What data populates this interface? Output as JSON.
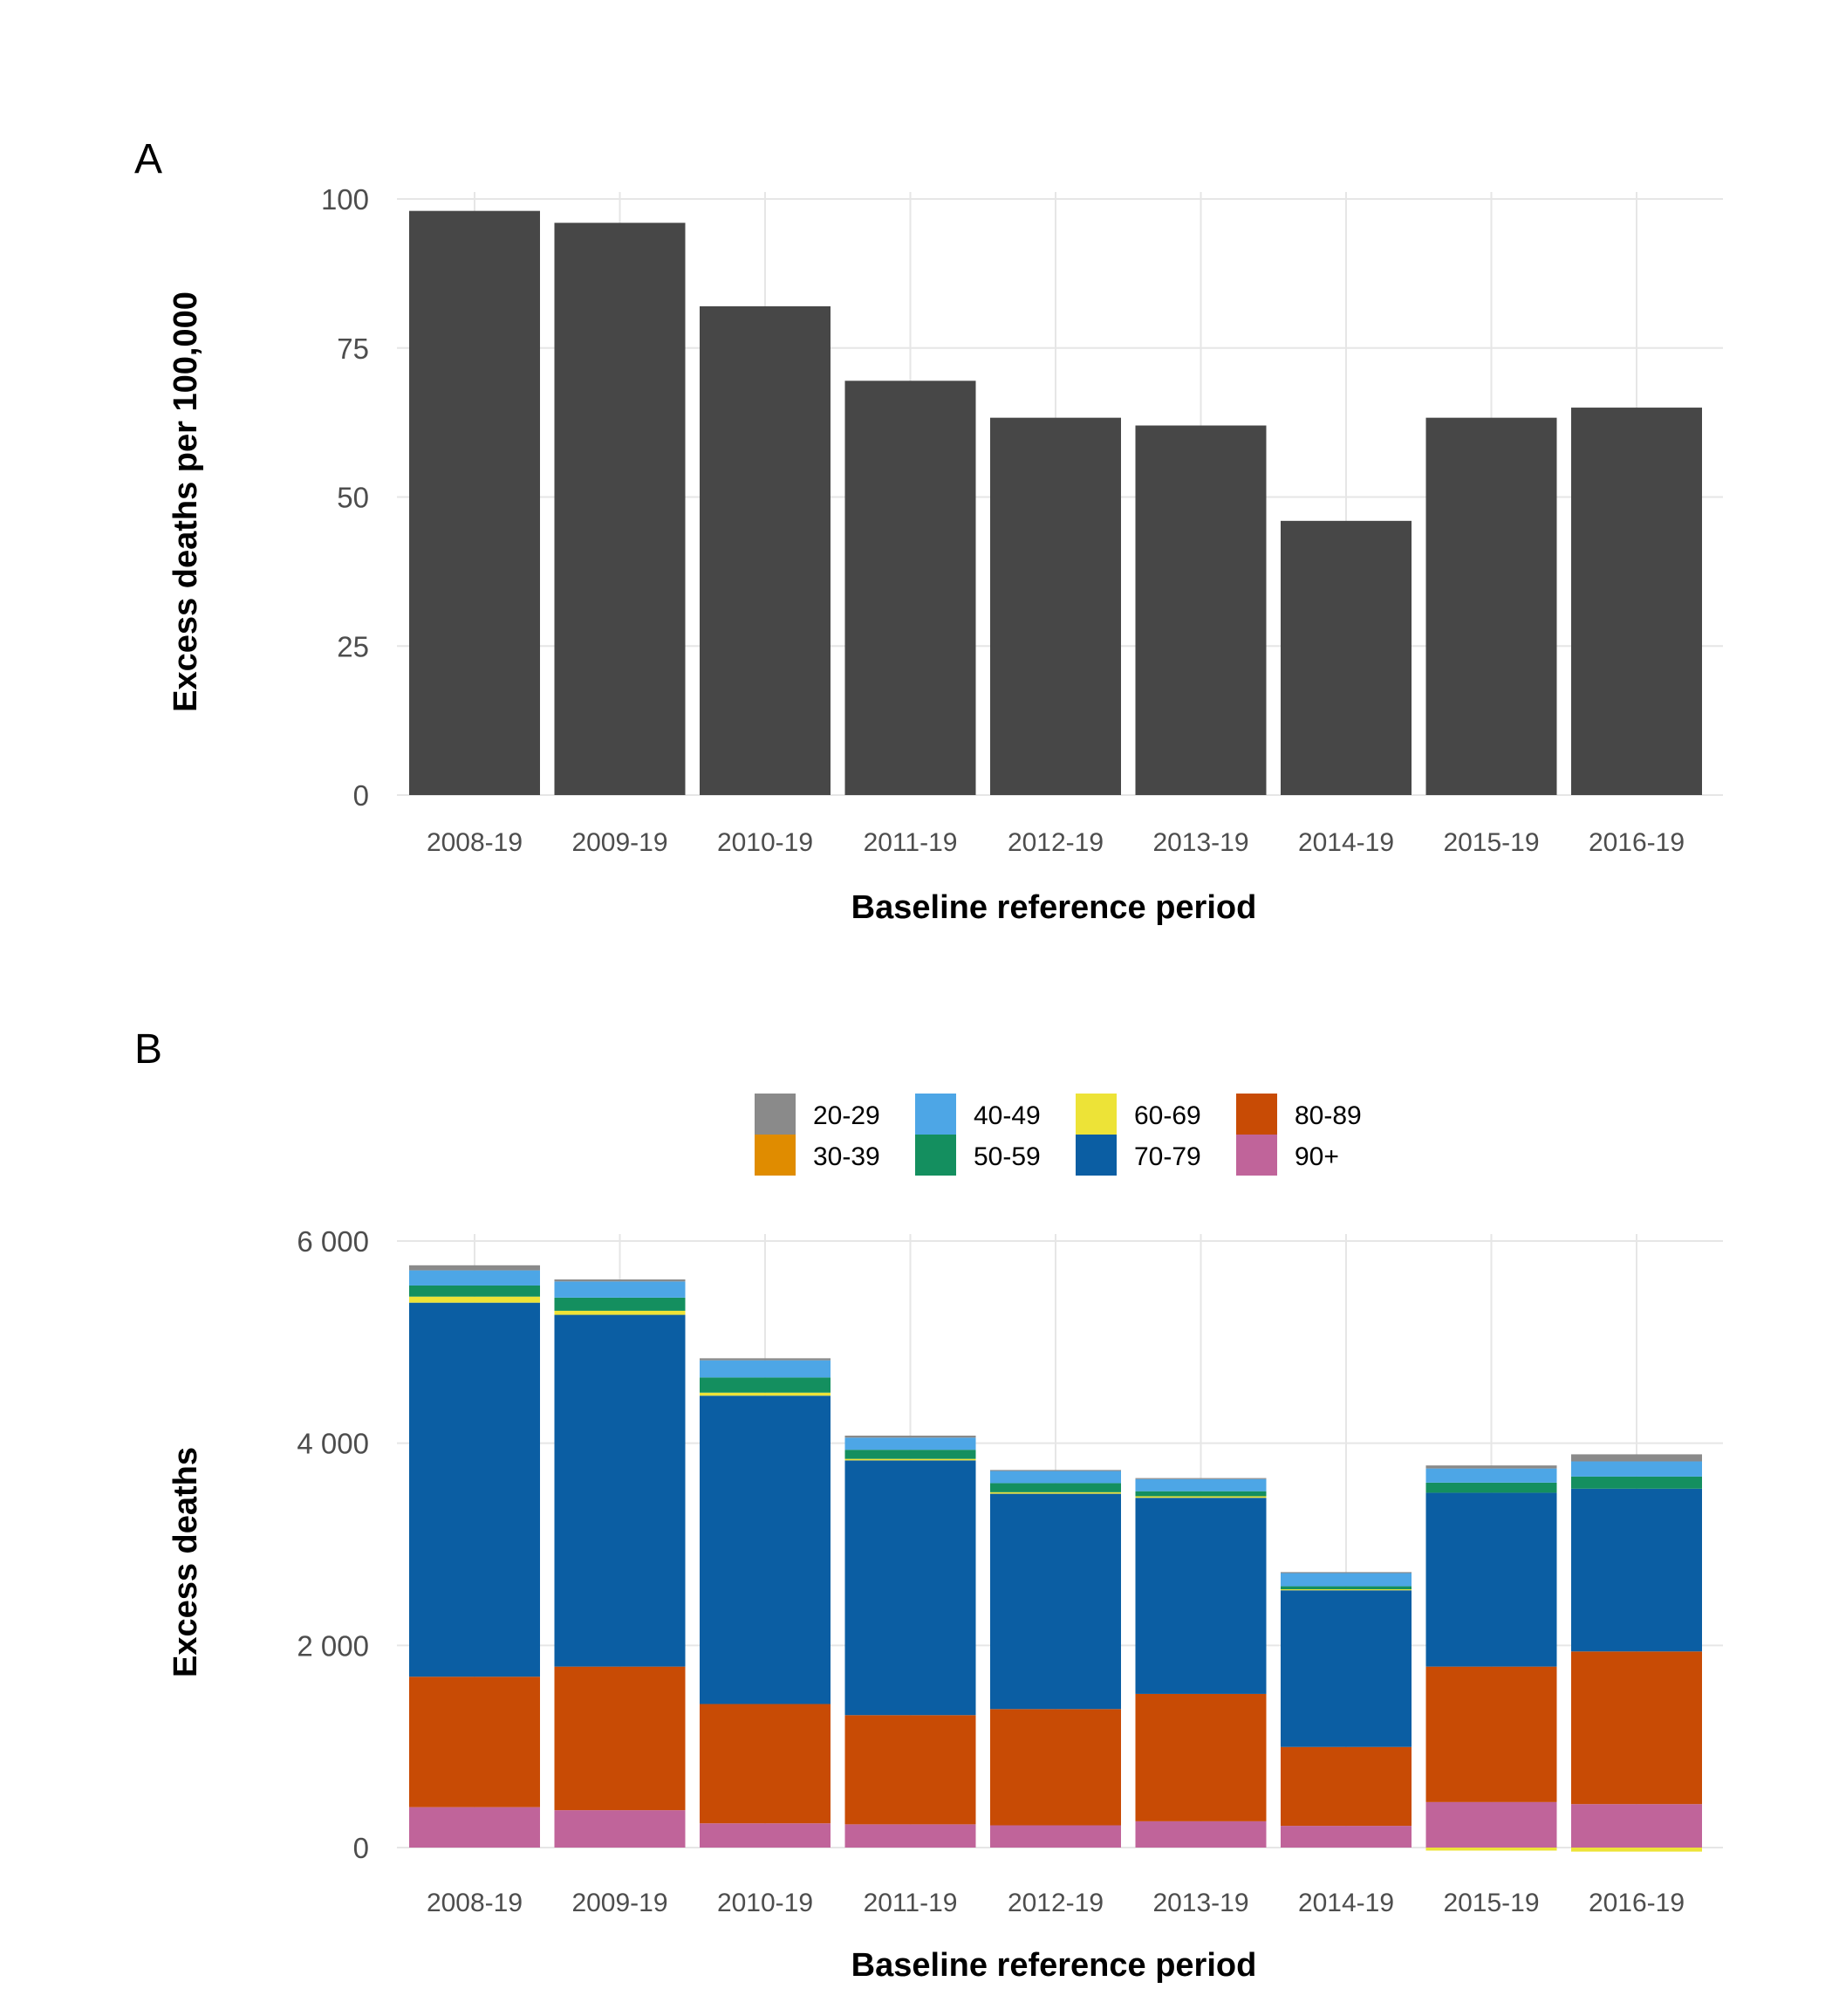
{
  "colors": {
    "bar_a": "#474747",
    "grid": "#e6e6e6"
  },
  "chart_data": [
    {
      "panel": "A",
      "type": "bar",
      "categories": [
        "2008-19",
        "2009-19",
        "2010-19",
        "2011-19",
        "2012-19",
        "2013-19",
        "2014-19",
        "2015-19",
        "2016-19"
      ],
      "values": [
        98,
        96,
        82,
        69.5,
        63.3,
        62,
        46,
        63.3,
        65
      ],
      "xlabel": "Baseline reference period",
      "ylabel": "Excess deaths per 100,000",
      "ylim": [
        0,
        100
      ],
      "yticks": [
        0,
        25,
        50,
        75,
        100
      ],
      "ytick_labels": [
        "0",
        "25",
        "50",
        "75",
        "100"
      ],
      "grid": true,
      "color": "#474747"
    },
    {
      "panel": "B",
      "type": "bar",
      "stacked": true,
      "categories": [
        "2008-19",
        "2009-19",
        "2010-19",
        "2011-19",
        "2012-19",
        "2013-19",
        "2014-19",
        "2015-19",
        "2016-19"
      ],
      "xlabel": "Baseline reference period",
      "ylabel": "Excess deaths",
      "ylim": [
        0,
        6000
      ],
      "yticks": [
        0,
        2000,
        4000,
        6000
      ],
      "ytick_labels": [
        "0",
        "2 000",
        "4 000",
        "6 000"
      ],
      "grid": true,
      "legend_position": "top",
      "series": [
        {
          "name": "20-29",
          "color": "#8a8a8a",
          "values": [
            50,
            20,
            20,
            20,
            10,
            10,
            10,
            30,
            70
          ]
        },
        {
          "name": "30-39",
          "color": "#e08c00",
          "values": [
            0,
            0,
            0,
            0,
            0,
            0,
            0,
            0,
            0
          ]
        },
        {
          "name": "40-49",
          "color": "#4da6e6",
          "values": [
            150,
            160,
            170,
            120,
            120,
            120,
            130,
            140,
            150
          ]
        },
        {
          "name": "50-59",
          "color": "#148f5f",
          "values": [
            110,
            130,
            150,
            90,
            90,
            50,
            30,
            100,
            120
          ]
        },
        {
          "name": "60-69",
          "color": "#ede337",
          "values": [
            60,
            40,
            30,
            15,
            15,
            15,
            10,
            -30,
            -40
          ]
        },
        {
          "name": "70-79",
          "color": "#0b5ea3",
          "values": [
            3700,
            3480,
            3050,
            2520,
            2130,
            1940,
            1550,
            1720,
            1610
          ]
        },
        {
          "name": "80-89",
          "color": "#c84b05",
          "values": [
            1290,
            1420,
            1180,
            1080,
            1150,
            1260,
            780,
            1340,
            1510
          ]
        },
        {
          "name": "90+",
          "color": "#c0649a",
          "values": [
            400,
            370,
            240,
            230,
            220,
            260,
            215,
            450,
            430
          ]
        }
      ]
    }
  ]
}
